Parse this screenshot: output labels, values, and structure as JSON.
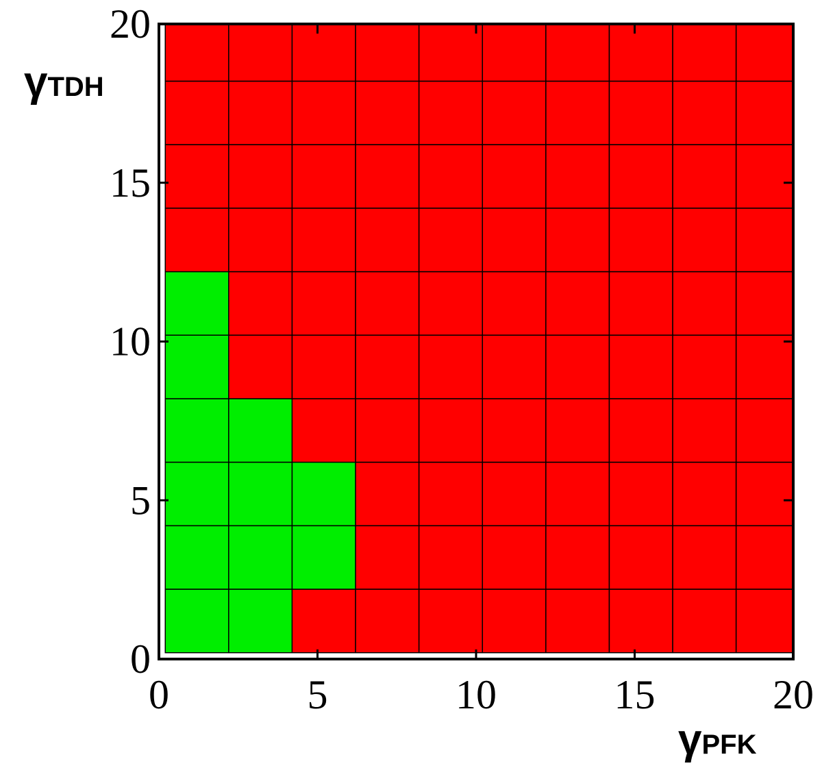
{
  "chart_data": {
    "type": "heatmap",
    "xlabel": {
      "symbol": "γ",
      "subscript": "PFK"
    },
    "ylabel": {
      "symbol": "γ",
      "subscript": "TDH"
    },
    "xbins": [
      0.2,
      2.2,
      4.2,
      6.2,
      8.2,
      10.2,
      12.2,
      14.2,
      16.2,
      18.2,
      20
    ],
    "ybins": [
      0.2,
      2.2,
      4.2,
      6.2,
      8.2,
      10.2,
      12.2,
      14.2,
      16.2,
      18.2,
      20
    ],
    "z": [
      [
        1,
        1,
        0,
        0,
        0,
        0,
        0,
        0,
        0,
        0
      ],
      [
        1,
        1,
        1,
        0,
        0,
        0,
        0,
        0,
        0,
        0
      ],
      [
        1,
        1,
        1,
        0,
        0,
        0,
        0,
        0,
        0,
        0
      ],
      [
        1,
        1,
        0,
        0,
        0,
        0,
        0,
        0,
        0,
        0
      ],
      [
        1,
        0,
        0,
        0,
        0,
        0,
        0,
        0,
        0,
        0
      ],
      [
        1,
        0,
        0,
        0,
        0,
        0,
        0,
        0,
        0,
        0
      ],
      [
        0,
        0,
        0,
        0,
        0,
        0,
        0,
        0,
        0,
        0
      ],
      [
        0,
        0,
        0,
        0,
        0,
        0,
        0,
        0,
        0,
        0
      ],
      [
        0,
        0,
        0,
        0,
        0,
        0,
        0,
        0,
        0,
        0
      ],
      [
        0,
        0,
        0,
        0,
        0,
        0,
        0,
        0,
        0,
        0
      ]
    ],
    "colors": [
      "#ff0000",
      "#00ee00"
    ],
    "xlim": [
      0,
      20
    ],
    "ylim": [
      0,
      20
    ],
    "xticks": [
      0,
      5,
      10,
      15,
      20
    ],
    "yticks": [
      0,
      5,
      10,
      15,
      20
    ]
  }
}
